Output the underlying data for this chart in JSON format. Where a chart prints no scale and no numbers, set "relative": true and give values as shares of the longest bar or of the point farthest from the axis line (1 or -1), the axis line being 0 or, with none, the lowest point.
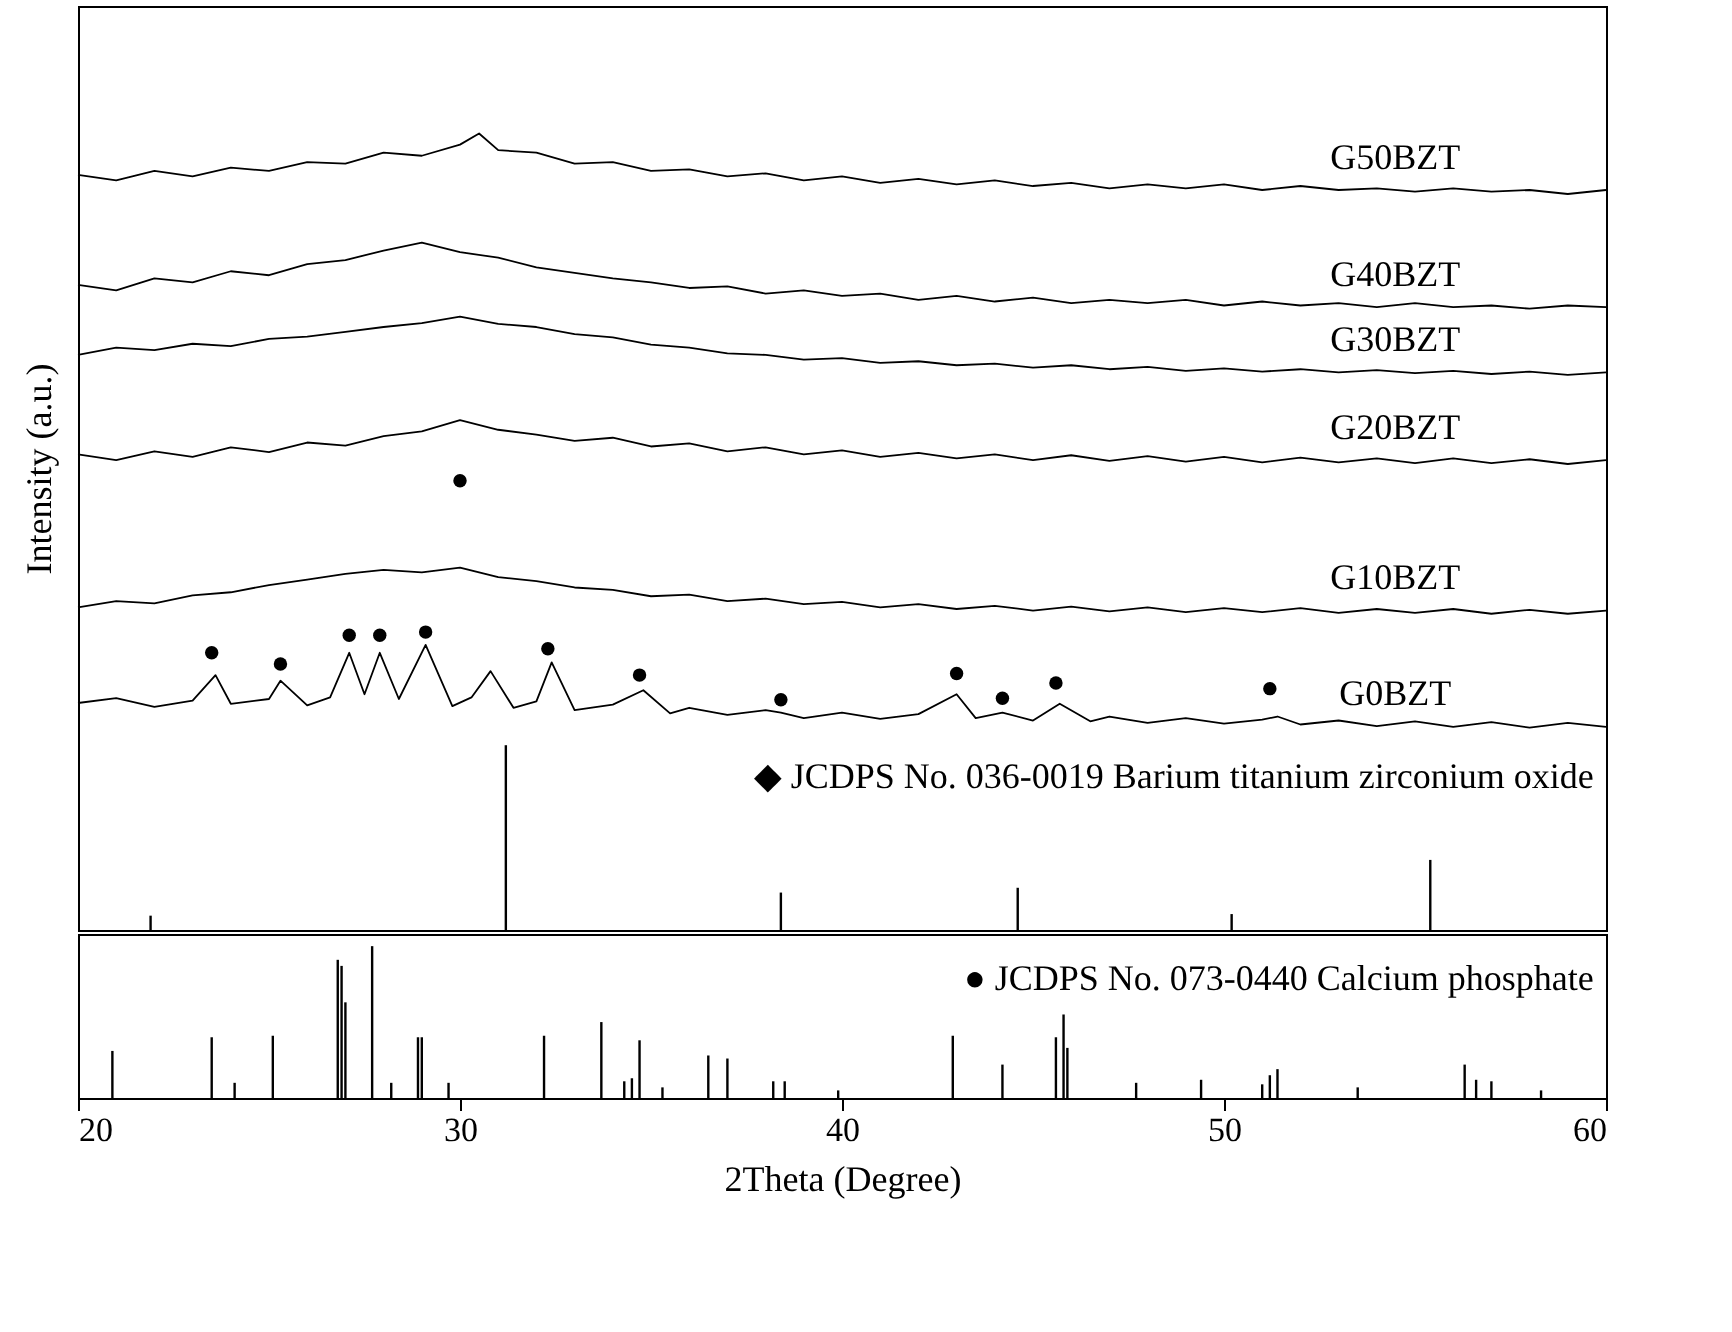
{
  "chart_data": [
    {
      "type": "line",
      "relative": true,
      "ylabel": "Intensity (a.u.)",
      "xlim": [
        20,
        60
      ],
      "tick_labels": false,
      "grid": false,
      "line_style": "solid",
      "annotations": [
        "◆ JCDPS No. 036-0019 Barium  titanium zirconium oxide"
      ],
      "series": [
        {
          "name": "G50BZT",
          "color": "#000000",
          "x": [
            20,
            21,
            22,
            23,
            24,
            25,
            26,
            27,
            28,
            29,
            30,
            30.5,
            31,
            32,
            33,
            34,
            35,
            36,
            37,
            38,
            39,
            40,
            41,
            42,
            43,
            44,
            45,
            46,
            47,
            48,
            49,
            50,
            51,
            52,
            53,
            54,
            55,
            56,
            57,
            58,
            59,
            60
          ],
          "values": [
            0.948,
            0.941,
            0.953,
            0.946,
            0.957,
            0.953,
            0.964,
            0.962,
            0.976,
            0.972,
            0.986,
            1.0,
            0.979,
            0.976,
            0.962,
            0.964,
            0.953,
            0.955,
            0.946,
            0.95,
            0.941,
            0.946,
            0.938,
            0.943,
            0.936,
            0.941,
            0.934,
            0.938,
            0.931,
            0.936,
            0.931,
            0.936,
            0.929,
            0.934,
            0.929,
            0.931,
            0.927,
            0.931,
            0.927,
            0.929,
            0.924,
            0.929
          ]
        },
        {
          "name": "G40BZT",
          "color": "#000000",
          "x": [
            20,
            21,
            22,
            23,
            24,
            25,
            26,
            27,
            28,
            29,
            30,
            31,
            32,
            33,
            34,
            35,
            36,
            37,
            38,
            39,
            40,
            41,
            42,
            43,
            44,
            45,
            46,
            47,
            48,
            49,
            50,
            51,
            52,
            53,
            54,
            55,
            56,
            57,
            58,
            59,
            60
          ],
          "values": [
            0.81,
            0.803,
            0.818,
            0.813,
            0.827,
            0.822,
            0.836,
            0.841,
            0.853,
            0.863,
            0.851,
            0.844,
            0.832,
            0.825,
            0.818,
            0.813,
            0.806,
            0.808,
            0.799,
            0.803,
            0.796,
            0.799,
            0.791,
            0.796,
            0.789,
            0.794,
            0.787,
            0.791,
            0.787,
            0.791,
            0.784,
            0.789,
            0.784,
            0.787,
            0.782,
            0.787,
            0.782,
            0.784,
            0.78,
            0.784,
            0.782
          ]
        },
        {
          "name": "G30BZT",
          "color": "#000000",
          "x": [
            20,
            21,
            22,
            23,
            24,
            25,
            26,
            27,
            28,
            29,
            30,
            31,
            32,
            33,
            34,
            35,
            36,
            37,
            38,
            39,
            40,
            41,
            42,
            43,
            44,
            45,
            46,
            47,
            48,
            49,
            50,
            51,
            52,
            53,
            54,
            55,
            56,
            57,
            58,
            59,
            60
          ],
          "values": [
            0.722,
            0.731,
            0.728,
            0.736,
            0.733,
            0.742,
            0.745,
            0.751,
            0.757,
            0.762,
            0.77,
            0.761,
            0.757,
            0.748,
            0.744,
            0.735,
            0.731,
            0.724,
            0.722,
            0.716,
            0.718,
            0.712,
            0.714,
            0.709,
            0.711,
            0.706,
            0.709,
            0.704,
            0.707,
            0.702,
            0.705,
            0.701,
            0.704,
            0.7,
            0.703,
            0.699,
            0.702,
            0.698,
            0.701,
            0.697,
            0.7
          ]
        },
        {
          "name": "G20BZT",
          "color": "#000000",
          "x": [
            20,
            21,
            22,
            23,
            24,
            25,
            26,
            27,
            28,
            29,
            30,
            31,
            32,
            33,
            34,
            35,
            36,
            37,
            38,
            39,
            40,
            41,
            42,
            43,
            44,
            45,
            46,
            47,
            48,
            49,
            50,
            51,
            52,
            53,
            54,
            55,
            56,
            57,
            58,
            59,
            60
          ],
          "values": [
            0.597,
            0.59,
            0.601,
            0.594,
            0.606,
            0.6,
            0.612,
            0.608,
            0.62,
            0.626,
            0.64,
            0.628,
            0.622,
            0.614,
            0.618,
            0.607,
            0.611,
            0.601,
            0.606,
            0.597,
            0.602,
            0.594,
            0.599,
            0.592,
            0.597,
            0.59,
            0.596,
            0.589,
            0.595,
            0.588,
            0.594,
            0.587,
            0.593,
            0.587,
            0.592,
            0.586,
            0.592,
            0.586,
            0.591,
            0.585,
            0.59
          ]
        },
        {
          "name": "G10BZT",
          "color": "#000000",
          "x": [
            20,
            21,
            22,
            23,
            24,
            25,
            26,
            27,
            28,
            29,
            30,
            31,
            32,
            33,
            34,
            35,
            36,
            37,
            38,
            39,
            40,
            41,
            42,
            43,
            44,
            45,
            46,
            47,
            48,
            49,
            50,
            51,
            52,
            53,
            54,
            55,
            56,
            57,
            58,
            59,
            60
          ],
          "values": [
            0.405,
            0.413,
            0.41,
            0.42,
            0.424,
            0.433,
            0.44,
            0.447,
            0.452,
            0.449,
            0.455,
            0.443,
            0.438,
            0.43,
            0.427,
            0.419,
            0.421,
            0.413,
            0.416,
            0.409,
            0.412,
            0.405,
            0.409,
            0.403,
            0.407,
            0.401,
            0.406,
            0.4,
            0.405,
            0.399,
            0.404,
            0.399,
            0.404,
            0.398,
            0.403,
            0.398,
            0.403,
            0.397,
            0.402,
            0.397,
            0.401
          ]
        },
        {
          "name": "G0BZT",
          "color": "#000000",
          "x": [
            20,
            21,
            22,
            23,
            23.6,
            24,
            25,
            25.3,
            26,
            26.6,
            27.1,
            27.5,
            27.9,
            28.4,
            29.1,
            29.8,
            30.3,
            30.8,
            31.4,
            32,
            32.4,
            33,
            34,
            34.8,
            35.5,
            36,
            37,
            38,
            38.4,
            39,
            40,
            41,
            42,
            43,
            43.5,
            44.2,
            45,
            45.7,
            46.5,
            47,
            48,
            49,
            50,
            51,
            51.4,
            52,
            53,
            54,
            55,
            56,
            57,
            58,
            59,
            60
          ],
          "values": [
            0.285,
            0.291,
            0.28,
            0.288,
            0.32,
            0.284,
            0.29,
            0.313,
            0.282,
            0.292,
            0.348,
            0.296,
            0.348,
            0.29,
            0.358,
            0.281,
            0.292,
            0.325,
            0.279,
            0.287,
            0.336,
            0.276,
            0.283,
            0.301,
            0.272,
            0.279,
            0.27,
            0.276,
            0.273,
            0.266,
            0.273,
            0.265,
            0.271,
            0.296,
            0.266,
            0.273,
            0.263,
            0.284,
            0.262,
            0.268,
            0.26,
            0.266,
            0.259,
            0.264,
            0.268,
            0.258,
            0.263,
            0.256,
            0.262,
            0.255,
            0.261,
            0.254,
            0.26,
            0.255
          ]
        },
        {
          "type": "scatter",
          "marker": "circle",
          "color": "#000000",
          "x": [
            23.5,
            25.3,
            27.1,
            27.9,
            29.1,
            30.0,
            32.3,
            34.7,
            38.4,
            43.0,
            44.2,
            45.6,
            51.2
          ],
          "values": [
            0.348,
            0.334,
            0.37,
            0.37,
            0.374,
            0.564,
            0.353,
            0.32,
            0.289,
            0.322,
            0.291,
            0.31,
            0.303
          ]
        },
        {
          "type": "bar",
          "color": "#000000",
          "x": [
            21.9,
            31.2,
            38.4,
            44.6,
            50.2,
            55.4
          ],
          "values": [
            0.018,
            0.232,
            0.047,
            0.053,
            0.02,
            0.088
          ]
        }
      ]
    },
    {
      "type": "bar",
      "relative": true,
      "xlabel": "2Theta (Degree)",
      "xlim": [
        20,
        60
      ],
      "xticks": [
        20,
        30,
        40,
        50,
        60
      ],
      "tick_labels": "x",
      "grid": false,
      "annotations": [
        "● JCDPS No. 073-0440 Calcium phosphate"
      ],
      "series": [
        {
          "color": "#000000",
          "x": [
            20.9,
            23.5,
            24.1,
            25.1,
            26.8,
            26.9,
            27.0,
            27.7,
            28.2,
            28.9,
            29.0,
            29.7,
            32.2,
            33.7,
            34.3,
            34.5,
            34.7,
            35.3,
            36.5,
            37.0,
            38.2,
            38.5,
            39.9,
            42.9,
            44.2,
            45.6,
            45.8,
            45.9,
            47.7,
            49.4,
            51.0,
            51.2,
            51.4,
            53.5,
            56.3,
            56.6,
            57.0,
            58.3
          ],
          "values": [
            0.31,
            0.4,
            0.1,
            0.41,
            0.91,
            0.87,
            0.63,
            1.0,
            0.1,
            0.4,
            0.4,
            0.1,
            0.41,
            0.5,
            0.11,
            0.13,
            0.38,
            0.07,
            0.28,
            0.26,
            0.11,
            0.11,
            0.05,
            0.41,
            0.22,
            0.4,
            0.55,
            0.33,
            0.1,
            0.12,
            0.09,
            0.15,
            0.19,
            0.07,
            0.22,
            0.12,
            0.11,
            0.05
          ]
        }
      ]
    }
  ]
}
